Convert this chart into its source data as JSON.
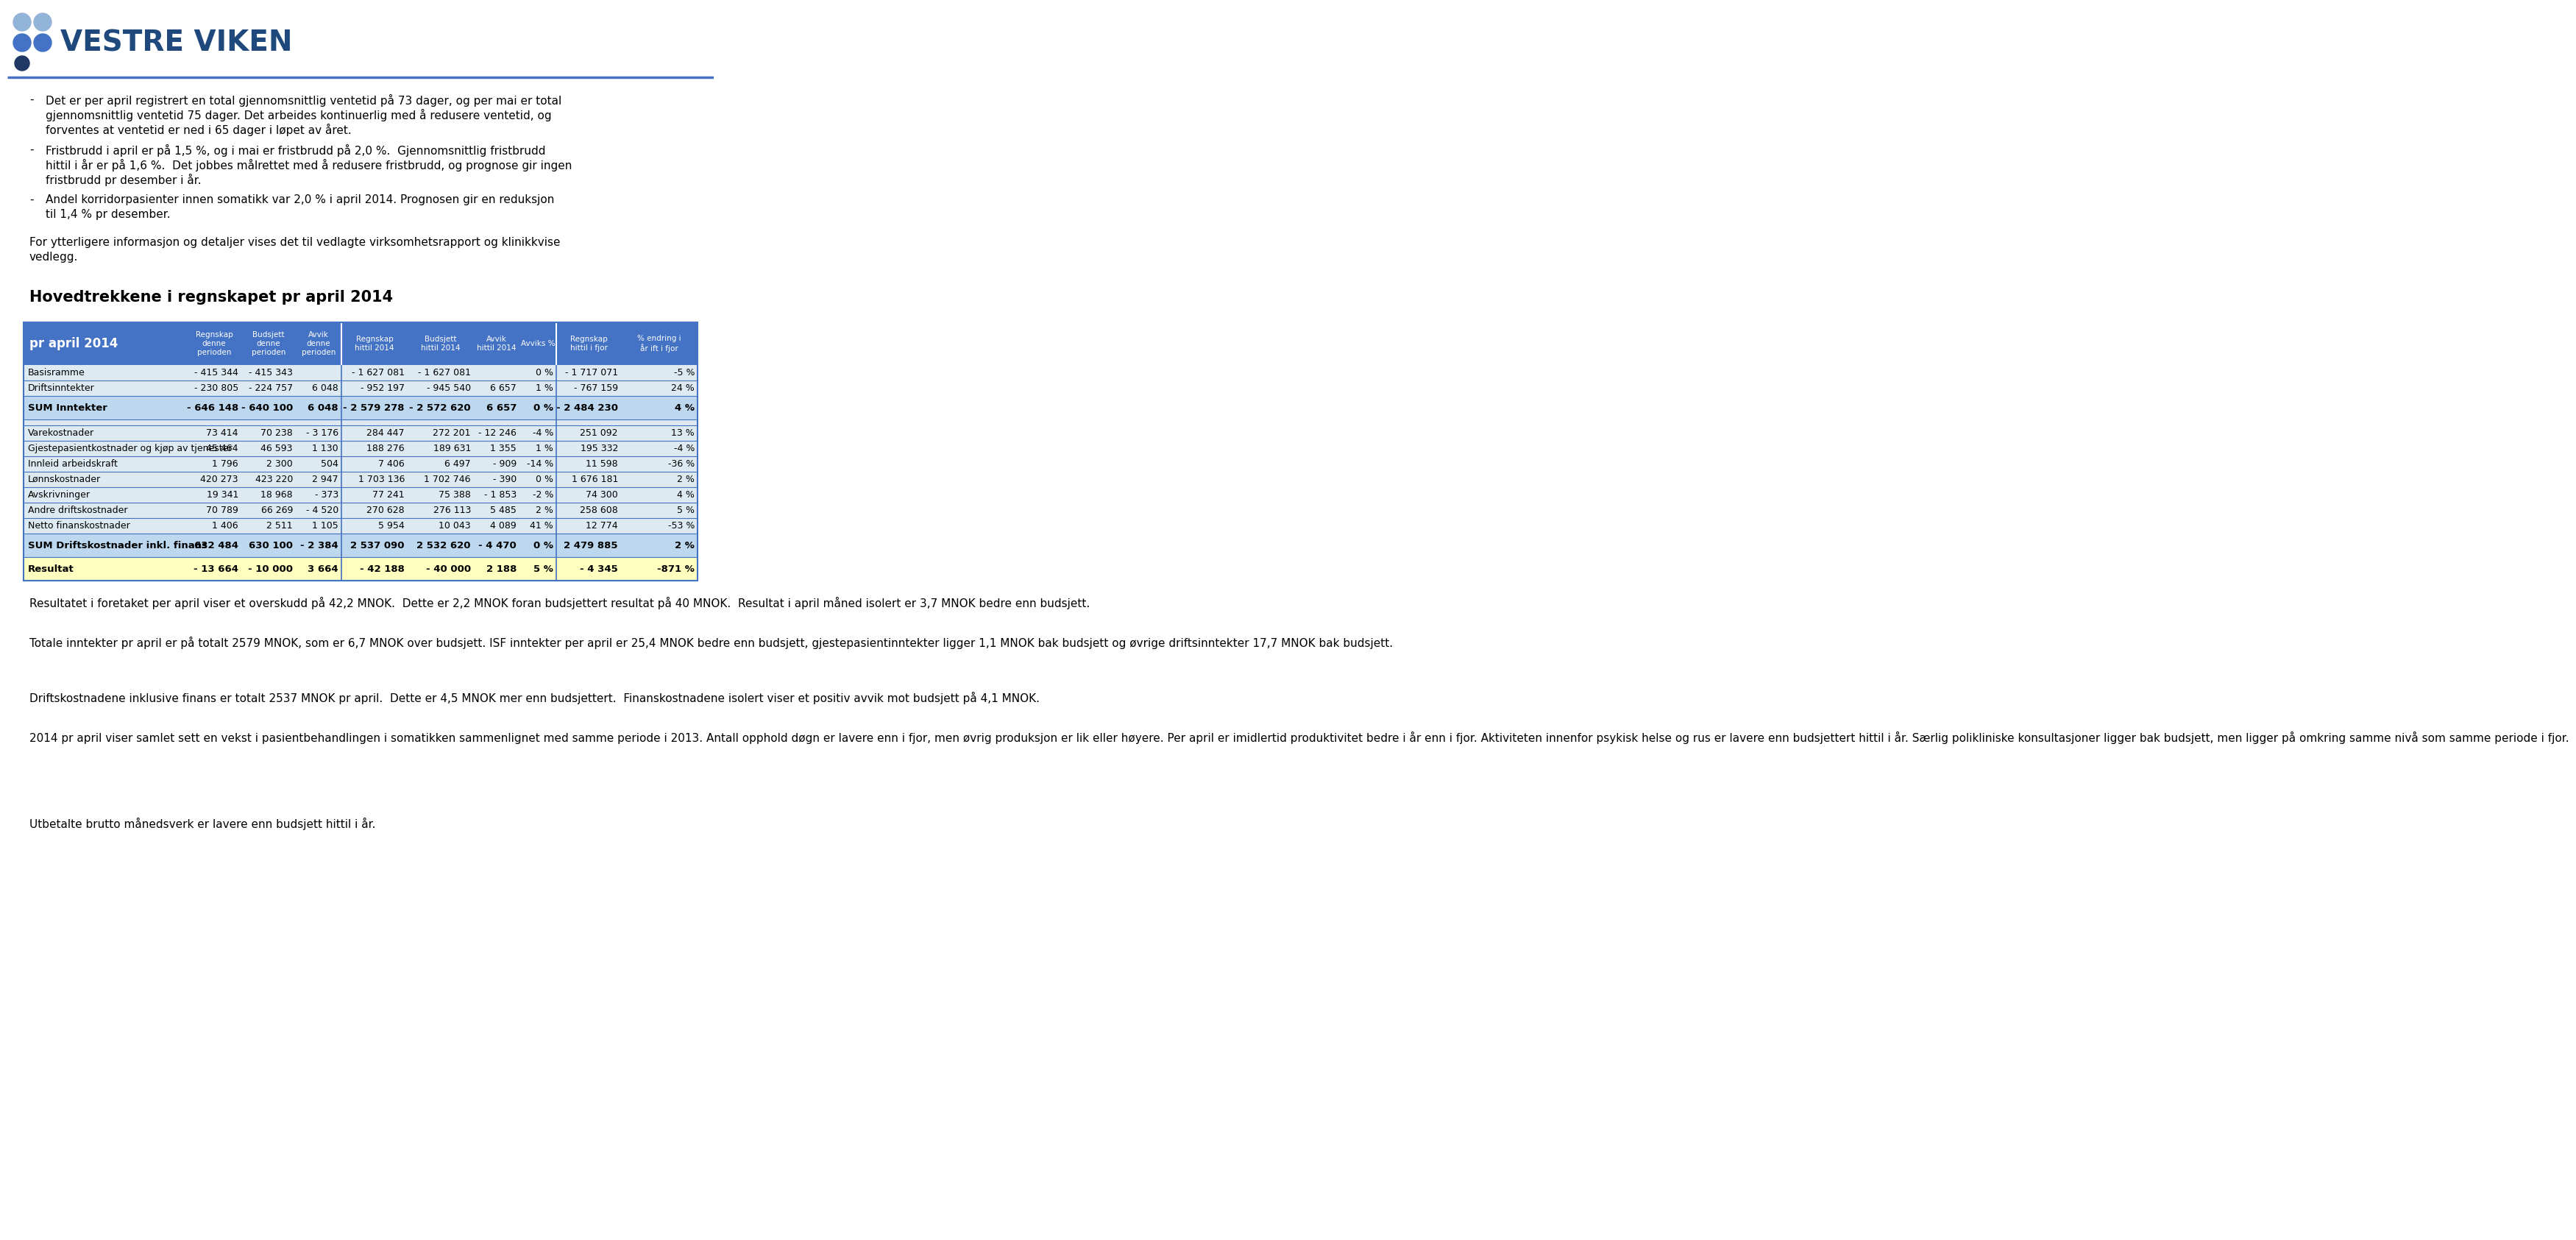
{
  "title": "VESTRE VIKEN",
  "bullet_lines": [
    [
      "Det er per april registrert en total gjennomsnittlig ventetid på 73 dager, og per mai er total",
      "gjennomsnittlig ventetid 75 dager. Det arbeides kontinuerlig med å redusere ventetid, og",
      "forventes at ventetid er ned i 65 dager i løpet av året."
    ],
    [
      "Fristbrudd i april er på 1,5 %, og i mai er fristbrudd på 2,0 %.  Gjennomsnittlig fristbrudd",
      "hittil i år er på 1,6 %.  Det jobbes målrettet med å redusere fristbrudd, og prognose gir ingen",
      "fristbrudd pr desember i år."
    ],
    [
      "Andel korridorpasienter innen somatikk var 2,0 % i april 2014. Prognosen gir en reduksjon",
      "til 1,4 % pr desember."
    ]
  ],
  "info_lines": [
    "For ytterligere informasjon og detaljer vises det til vedlagte virksomhetsrapport og klinikkvise",
    "vedlegg."
  ],
  "section_title": "Hovedtrekkene i regnskapet pr april 2014",
  "table_header_col0": "pr april 2014",
  "table_headers_group1": [
    "Regnskap\ndenne\nperioden",
    "Budsjett\ndenne\nperioden",
    "Avvik\ndenne\nperioden"
  ],
  "table_headers_group2": [
    "Regnskap\nhittil 2014",
    "Budsjett\nhittil 2014",
    "Avvik\nhittil 2014",
    "Avviks %"
  ],
  "table_headers_group3": [
    "Regnskap\nhittil i fjor",
    "% endring i\når ift i fjor"
  ],
  "table_rows": [
    [
      "Basisramme",
      "- 415 344",
      "- 415 343",
      "",
      "- 1 627 081",
      "- 1 627 081",
      "",
      "0 %",
      "- 1 717 071",
      "-5 %"
    ],
    [
      "Driftsinntekter",
      "- 230 805",
      "- 224 757",
      "6 048",
      "- 952 197",
      "- 945 540",
      "6 657",
      "1 %",
      "- 767 159",
      "24 %"
    ],
    [
      "SUM Inntekter",
      "- 646 148",
      "- 640 100",
      "6 048",
      "- 2 579 278",
      "- 2 572 620",
      "6 657",
      "0 %",
      "- 2 484 230",
      "4 %"
    ],
    [
      "__blank__",
      "",
      "",
      "",
      "",
      "",
      "",
      "",
      "",
      ""
    ],
    [
      "Varekostnader",
      "73 414",
      "70 238",
      "- 3 176",
      "284 447",
      "272 201",
      "- 12 246",
      "-4 %",
      "251 092",
      "13 %"
    ],
    [
      "Gjestepasientkostnader og kjøp av tjenester",
      "45 464",
      "46 593",
      "1 130",
      "188 276",
      "189 631",
      "1 355",
      "1 %",
      "195 332",
      "-4 %"
    ],
    [
      "Innleid arbeidskraft",
      "1 796",
      "2 300",
      "504",
      "7 406",
      "6 497",
      "- 909",
      "-14 %",
      "11 598",
      "-36 %"
    ],
    [
      "Lønnskostnader",
      "420 273",
      "423 220",
      "2 947",
      "1 703 136",
      "1 702 746",
      "- 390",
      "0 %",
      "1 676 181",
      "2 %"
    ],
    [
      "Avskrivninger",
      "19 341",
      "18 968",
      "- 373",
      "77 241",
      "75 388",
      "- 1 853",
      "-2 %",
      "74 300",
      "4 %"
    ],
    [
      "Andre driftskostnader",
      "70 789",
      "66 269",
      "- 4 520",
      "270 628",
      "276 113",
      "5 485",
      "2 %",
      "258 608",
      "5 %"
    ],
    [
      "Netto finanskostnader",
      "1 406",
      "2 511",
      "1 105",
      "5 954",
      "10 043",
      "4 089",
      "41 %",
      "12 774",
      "-53 %"
    ],
    [
      "SUM Driftskostnader inkl. finans",
      "632 484",
      "630 100",
      "- 2 384",
      "2 537 090",
      "2 532 620",
      "- 4 470",
      "0 %",
      "2 479 885",
      "2 %"
    ],
    [
      "Resultat",
      "- 13 664",
      "- 10 000",
      "3 664",
      "- 42 188",
      "- 40 000",
      "2 188",
      "5 %",
      "- 4 345",
      "-871 %"
    ]
  ],
  "sum_rows": [
    2,
    11
  ],
  "resultat_row": 12,
  "blank_rows": [
    3
  ],
  "footer_paragraphs": [
    "Resultatet i foretaket per april viser et overskudd på 42,2 MNOK.  Dette er 2,2 MNOK foran budsjettert resultat på 40 MNOK.  Resultat i april måned isolert er 3,7 MNOK bedre enn budsjett.",
    "Totale inntekter pr april er på totalt 2579 MNOK, som er 6,7 MNOK over budsjett. ISF inntekter per april er 25,4 MNOK bedre enn budsjett, gjestepasientinntekter ligger 1,1 MNOK bak budsjett og øvrige driftsinntekter 17,7 MNOK bak budsjett.",
    "Driftskostnadene inklusive finans er totalt 2537 MNOK pr april.  Dette er 4,5 MNOK mer enn budsjettert.  Finanskostnadene isolert viser et positiv avvik mot budsjett på 4,1 MNOK.",
    "2014 pr april viser samlet sett en vekst i pasientbehandlingen i somatikken sammenlignet med samme periode i 2013. Antall opphold døgn er lavere enn i fjor, men øvrig produksjon er lik eller høyere. Per april er imidlertid produktivitet bedre i år enn i fjor. Aktiviteten innenfor psykisk helse og rus er lavere enn budsjettert hittil i år. Særlig polikliniske konsultasjoner ligger bak budsjett, men ligger på omkring samme nivå som samme periode i fjor.",
    "Utbetalte brutto månedsverk er lavere enn budsjett hittil i år."
  ],
  "colors": {
    "header_bg": "#4472C4",
    "header_text": "#FFFFFF",
    "sum_bg": "#BDD7EE",
    "normal_bg": "#DEEAF1",
    "resultat_bg": "#FFFFC0",
    "title_color": "#1F497D",
    "separator_color": "#4472C4",
    "dot1": "#92B4D8",
    "dot2": "#4472C4",
    "dot3": "#1F3864"
  }
}
